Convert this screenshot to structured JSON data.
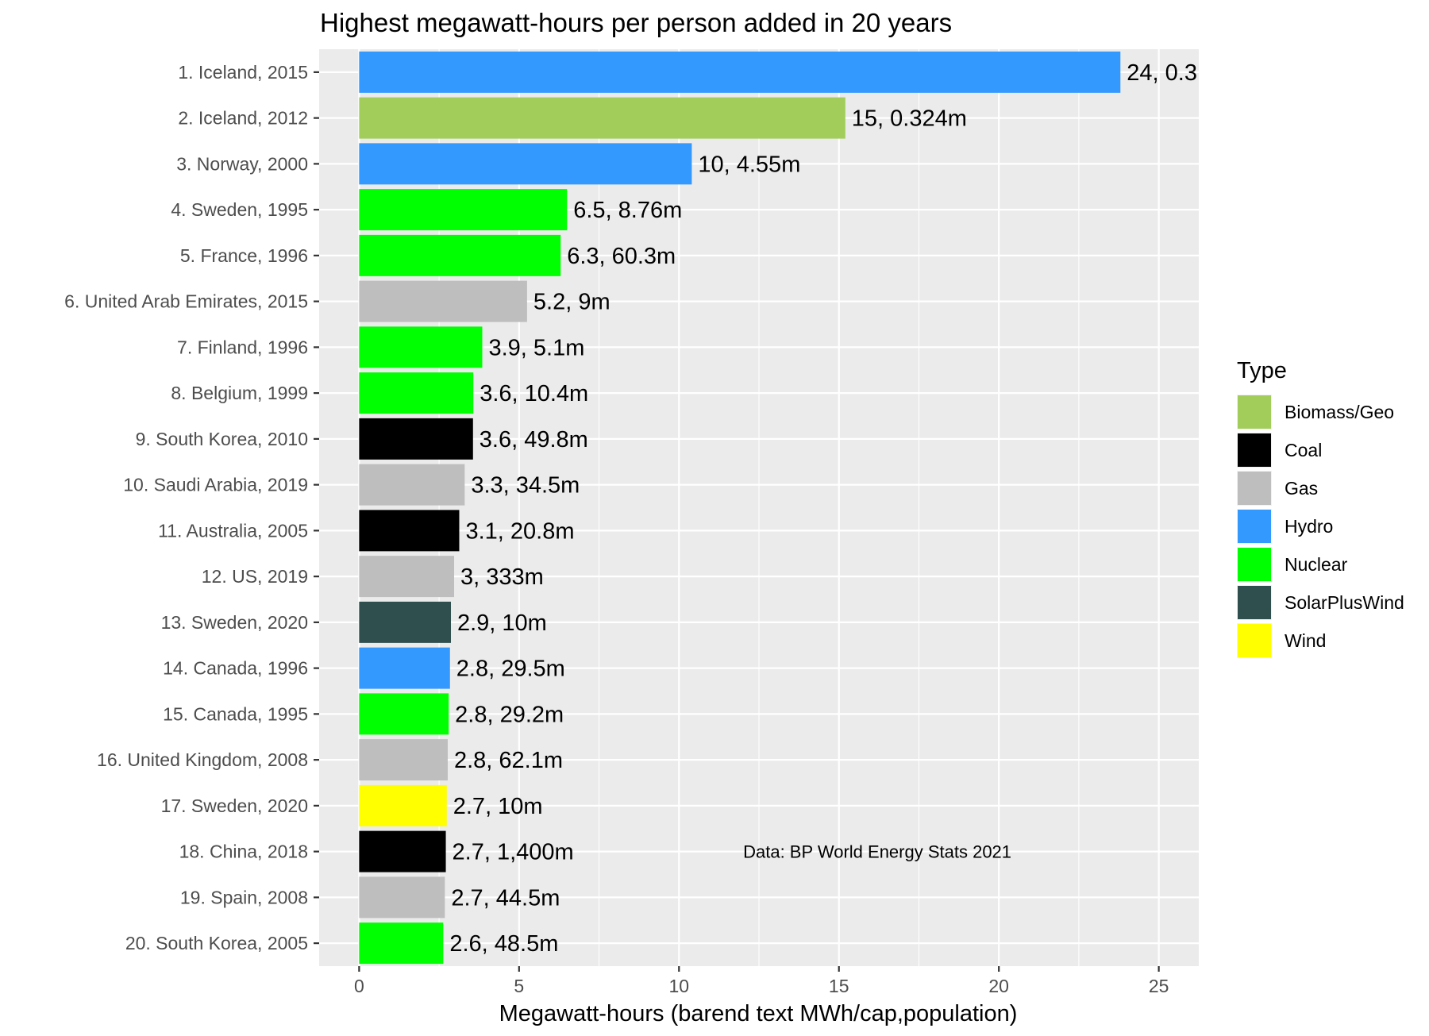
{
  "chart_data": {
    "type": "bar",
    "orientation": "horizontal",
    "title": "Highest megawatt-hours per person added in 20 years",
    "xlabel": "Megawatt-hours (barend text MWh/cap,population)",
    "ylabel": "",
    "xlim": [
      -1.25,
      26.25
    ],
    "xticks": [
      0,
      5,
      10,
      15,
      20,
      25
    ],
    "grid": true,
    "legend": {
      "title": "Type",
      "position": "right",
      "items": [
        {
          "label": "Biomass/Geo",
          "color": "#a2cd5a"
        },
        {
          "label": "Coal",
          "color": "#000000"
        },
        {
          "label": "Gas",
          "color": "#bebebe"
        },
        {
          "label": "Hydro",
          "color": "#3399ff"
        },
        {
          "label": "Nuclear",
          "color": "#00ff00"
        },
        {
          "label": "SolarPlusWind",
          "color": "#2f4f4f"
        },
        {
          "label": "Wind",
          "color": "#ffff00"
        }
      ]
    },
    "annotation": "Data: BP World Energy Stats 2021",
    "bars": [
      {
        "category": "1. Iceland, 2015",
        "value": 23.8,
        "type": "Hydro",
        "label": "24, 0.3"
      },
      {
        "category": "2. Iceland, 2012",
        "value": 15.2,
        "type": "Biomass/Geo",
        "label": "15, 0.324m"
      },
      {
        "category": "3. Norway, 2000",
        "value": 10.4,
        "type": "Hydro",
        "label": "10, 4.55m"
      },
      {
        "category": "4. Sweden, 1995",
        "value": 6.5,
        "type": "Nuclear",
        "label": "6.5, 8.76m"
      },
      {
        "category": "5. France, 1996",
        "value": 6.3,
        "type": "Nuclear",
        "label": "6.3, 60.3m"
      },
      {
        "category": "6. United Arab Emirates, 2015",
        "value": 5.25,
        "type": "Gas",
        "label": "5.2, 9m"
      },
      {
        "category": "7. Finland, 1996",
        "value": 3.85,
        "type": "Nuclear",
        "label": "3.9, 5.1m"
      },
      {
        "category": "8. Belgium, 1999",
        "value": 3.57,
        "type": "Nuclear",
        "label": "3.6, 10.4m"
      },
      {
        "category": "9. South Korea, 2010",
        "value": 3.56,
        "type": "Coal",
        "label": "3.6, 49.8m"
      },
      {
        "category": "10. Saudi Arabia, 2019",
        "value": 3.3,
        "type": "Gas",
        "label": "3.3, 34.5m"
      },
      {
        "category": "11. Australia, 2005",
        "value": 3.13,
        "type": "Coal",
        "label": "3.1, 20.8m"
      },
      {
        "category": "12. US, 2019",
        "value": 2.97,
        "type": "Gas",
        "label": "3, 333m"
      },
      {
        "category": "13. Sweden, 2020",
        "value": 2.87,
        "type": "SolarPlusWind",
        "label": "2.9, 10m"
      },
      {
        "category": "14. Canada, 1996",
        "value": 2.84,
        "type": "Hydro",
        "label": "2.8, 29.5m"
      },
      {
        "category": "15. Canada, 1995",
        "value": 2.8,
        "type": "Nuclear",
        "label": "2.8, 29.2m"
      },
      {
        "category": "16. United Kingdom, 2008",
        "value": 2.77,
        "type": "Gas",
        "label": "2.8, 62.1m"
      },
      {
        "category": "17. Sweden, 2020",
        "value": 2.74,
        "type": "Wind",
        "label": "2.7, 10m"
      },
      {
        "category": "18. China, 2018",
        "value": 2.71,
        "type": "Coal",
        "label": "2.7, 1,400m"
      },
      {
        "category": "19. Spain, 2008",
        "value": 2.68,
        "type": "Gas",
        "label": "2.7, 44.5m"
      },
      {
        "category": "20. South Korea, 2005",
        "value": 2.63,
        "type": "Nuclear",
        "label": "2.6, 48.5m"
      }
    ]
  }
}
